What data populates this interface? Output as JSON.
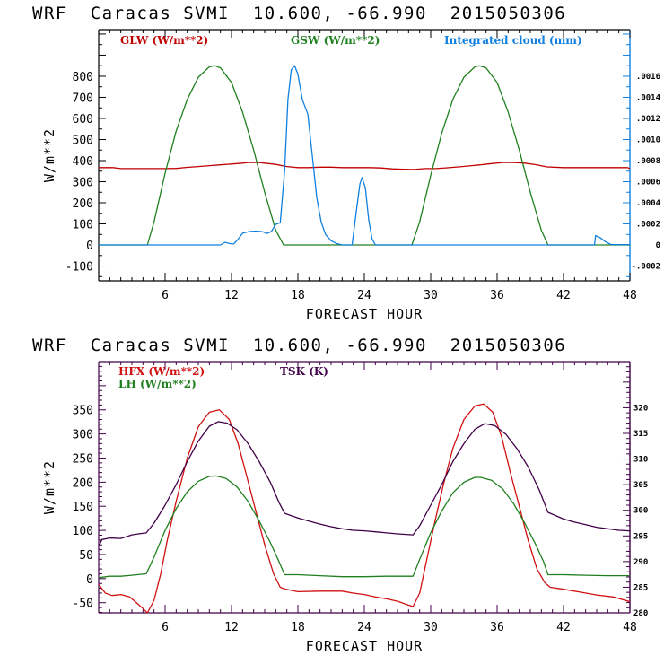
{
  "chart_data": [
    {
      "type": "line",
      "title": "WRF  Caracas SVMI  10.600, -66.990  2015050306",
      "xlabel": "FORECAST HOUR",
      "ylabel": "W/m**2",
      "ylabel_right": "",
      "xlim": [
        0,
        48
      ],
      "ylim": [
        -170,
        1021
      ],
      "ylim_right": [
        -0.00034,
        0.002042
      ],
      "xticks": [
        6,
        12,
        18,
        24,
        30,
        36,
        42,
        48
      ],
      "xtick_labels": [
        "6",
        "12",
        "18",
        "24",
        "30",
        "36",
        "42",
        "48"
      ],
      "yticks": [
        -100,
        0,
        100,
        200,
        300,
        400,
        500,
        600,
        700,
        800
      ],
      "ytick_labels": [
        "-100",
        "0",
        "100",
        "200",
        "300",
        "400",
        "500",
        "600",
        "700",
        "800"
      ],
      "yticks_right": [
        -0.0002,
        0,
        0.0002,
        0.0004,
        0.0006,
        0.0008,
        0.001,
        0.0012,
        0.0014,
        0.0016
      ],
      "ytick_labels_right": [
        "-.0002",
        "0",
        ".0002",
        ".0004",
        ".0006",
        ".0008",
        ".0010",
        ".0012",
        ".0014",
        ".0016"
      ],
      "grid": false,
      "legend_position": "top",
      "series": [
        {
          "name": "GLW (W/m**2)",
          "axis": "left",
          "color": "#c00000",
          "x": [
            0,
            1.3,
            2,
            4,
            6,
            7,
            8,
            9,
            10,
            11,
            12,
            13,
            13.5,
            14.5,
            15,
            16,
            17,
            18,
            19,
            20,
            21,
            22,
            23,
            24,
            24.5,
            25.5,
            26.5,
            27.5,
            28.5,
            29.5,
            30.5,
            31.5,
            32.5,
            33.5,
            34.5,
            35.5,
            36.5,
            37.5,
            38.5,
            39.5,
            40.5,
            42,
            44,
            46,
            47.8,
            48
          ],
          "y": [
            367,
            367,
            362,
            362,
            362,
            363,
            368,
            372,
            376,
            380,
            384,
            388,
            391,
            391,
            388,
            382,
            372,
            367,
            367,
            369,
            369,
            367,
            367,
            367,
            367,
            365,
            361,
            359,
            358,
            362,
            362,
            366,
            370,
            375,
            380,
            386,
            391,
            391,
            388,
            381,
            370,
            367,
            367,
            367,
            367,
            362
          ]
        },
        {
          "name": "GSW (W/m**2)",
          "axis": "left",
          "color": "#208020",
          "x": [
            0,
            4.4,
            5,
            6,
            7,
            8,
            9,
            10,
            10.5,
            11,
            12,
            13,
            14,
            15,
            16,
            16.7,
            20,
            24,
            28.3,
            29,
            30,
            31,
            32,
            33,
            34,
            34.4,
            35,
            36,
            37,
            38,
            39,
            40,
            40.6,
            44,
            48
          ],
          "y": [
            0,
            0,
            110,
            340,
            540,
            690,
            795,
            845,
            850,
            840,
            770,
            630,
            450,
            250,
            70,
            0,
            0,
            0,
            0,
            110,
            330,
            530,
            690,
            795,
            845,
            850,
            840,
            770,
            630,
            450,
            250,
            70,
            0,
            0,
            0
          ]
        },
        {
          "name": "Integrated cloud (mm)",
          "axis": "right",
          "color": "#1080e0",
          "x": [
            0,
            11.0,
            11.4,
            11.8,
            12.2,
            12.6,
            13.0,
            13.6,
            14.2,
            14.8,
            15.2,
            15.6,
            16.0,
            16.4,
            16.8,
            17.1,
            17.4,
            17.7,
            18.0,
            18.4,
            18.9,
            19.3,
            19.7,
            20.1,
            20.5,
            21.0,
            21.5,
            22.0,
            22.9,
            23.3,
            23.6,
            23.8,
            24.1,
            24.4,
            24.7,
            25.0,
            44.8,
            44.9,
            45.3,
            45.8,
            46.3,
            48
          ],
          "y": [
            0,
            0,
            2.6e-05,
            1.4e-05,
            1e-05,
            5.6e-05,
            0.000112,
            0.000128,
            0.000132,
            0.000126,
            0.00011,
            0.000128,
            0.000196,
            0.00021,
            0.0007,
            0.00138,
            0.00166,
            0.0017,
            0.00162,
            0.00138,
            0.00124,
            0.00085,
            0.00045,
            0.00022,
            0.0001,
            4e-05,
            1.4e-05,
            0,
            0,
            0.00034,
            0.00058,
            0.00064,
            0.00054,
            0.00024,
            6e-05,
            0,
            0,
            9e-05,
            7e-05,
            3e-05,
            4e-06,
            4e-06
          ]
        }
      ]
    },
    {
      "type": "line",
      "title": "WRF  Caracas SVMI  10.600, -66.990  2015050306",
      "xlabel": "FORECAST HOUR",
      "ylabel": "W/m**2",
      "xlim": [
        0,
        48
      ],
      "ylim": [
        -71,
        450
      ],
      "ylim_right": [
        280,
        329
      ],
      "xticks": [
        6,
        12,
        18,
        24,
        30,
        36,
        42,
        48
      ],
      "xtick_labels": [
        "6",
        "12",
        "18",
        "24",
        "30",
        "36",
        "42",
        "48"
      ],
      "yticks": [
        -50,
        0,
        50,
        100,
        150,
        200,
        250,
        300,
        350
      ],
      "ytick_labels": [
        "-50",
        "0",
        "50",
        "100",
        "150",
        "200",
        "250",
        "300",
        "350"
      ],
      "yticks_right": [
        280,
        285,
        290,
        295,
        300,
        305,
        310,
        315,
        320
      ],
      "ytick_labels_right": [
        "280",
        "285",
        "290",
        "295",
        "300",
        "305",
        "310",
        "315",
        "320"
      ],
      "grid": false,
      "legend_position": "top",
      "series": [
        {
          "name": "HFX (W/m**2)",
          "axis": "left",
          "color": "#d01010",
          "x": [
            0,
            0.6,
            1.2,
            2.0,
            2.8,
            3.5,
            4.0,
            4.4,
            5.0,
            5.6,
            6.2,
            7.0,
            8.0,
            9.0,
            10.0,
            10.9,
            11.8,
            12.6,
            13.4,
            14.2,
            15.0,
            15.8,
            16.4,
            16.9,
            18,
            20,
            22,
            23,
            24,
            25,
            26,
            27,
            28.0,
            28.4,
            29,
            29.6,
            30.4,
            31.2,
            32,
            33,
            34,
            34.8,
            35.6,
            36.4,
            37.2,
            38,
            38.8,
            39.6,
            40.3,
            40.8,
            42,
            43.5,
            45,
            46.5,
            48
          ],
          "y": [
            -12,
            -30,
            -35,
            -33,
            -38,
            -52,
            -62,
            -71,
            -45,
            10,
            80,
            160,
            250,
            315,
            345,
            350,
            330,
            280,
            210,
            140,
            70,
            10,
            -18,
            -22,
            -27,
            -26,
            -26,
            -30,
            -33,
            -38,
            -42,
            -47,
            -55,
            -58,
            -30,
            35,
            120,
            200,
            270,
            330,
            358,
            362,
            345,
            295,
            220,
            150,
            80,
            20,
            -8,
            -18,
            -22,
            -28,
            -34,
            -38,
            -48
          ]
        },
        {
          "name": "LH (W/m**2)",
          "axis": "left",
          "color": "#208020",
          "x": [
            0,
            1,
            2,
            3,
            4.3,
            5,
            6,
            7,
            8,
            9,
            10,
            10.6,
            11.5,
            12.5,
            13.5,
            14.5,
            15.5,
            16.2,
            16.8,
            18,
            20,
            22,
            24,
            26,
            28.4,
            29,
            30,
            31,
            32,
            33,
            34,
            34.5,
            35.5,
            36.5,
            37.5,
            38.5,
            39.5,
            40.2,
            40.6,
            42,
            44,
            46,
            48
          ],
          "y": [
            2,
            5,
            5,
            7,
            10,
            45,
            100,
            145,
            180,
            202,
            212,
            213,
            208,
            190,
            160,
            120,
            75,
            40,
            8,
            8,
            6,
            4,
            4,
            5,
            5,
            40,
            95,
            140,
            178,
            200,
            210,
            210,
            204,
            186,
            155,
            115,
            70,
            35,
            8,
            8,
            7,
            6,
            6
          ]
        },
        {
          "name": "TSK (K)",
          "axis": "right",
          "color": "#400048",
          "x": [
            0,
            0.3,
            1,
            2,
            3,
            3.6,
            4.3,
            5,
            6,
            7,
            8,
            9,
            10,
            10.8,
            11.6,
            12.5,
            13.5,
            14.5,
            15.5,
            16.3,
            16.8,
            18,
            19,
            20,
            21,
            22,
            23,
            24,
            25,
            26,
            27,
            28.4,
            29,
            30,
            31,
            32,
            33,
            34,
            34.9,
            35.8,
            36.8,
            37.8,
            38.8,
            39.8,
            40.6,
            42,
            43,
            44,
            45,
            46,
            47,
            48
          ],
          "y": [
            293.0,
            294.3,
            294.6,
            294.5,
            295.2,
            295.4,
            295.6,
            297.5,
            301.0,
            305.0,
            309.5,
            313.5,
            316.4,
            317.3,
            317.0,
            315.7,
            313.0,
            309.5,
            305.5,
            301.5,
            299.4,
            298.5,
            297.9,
            297.3,
            296.8,
            296.4,
            296.1,
            296.0,
            295.8,
            295.6,
            295.4,
            295.2,
            297.0,
            301.0,
            305.0,
            309.5,
            313.0,
            315.8,
            316.9,
            316.5,
            314.8,
            312.0,
            308.5,
            304.0,
            299.6,
            298.3,
            297.7,
            297.2,
            296.7,
            296.4,
            296.1,
            296.0
          ]
        }
      ]
    }
  ]
}
